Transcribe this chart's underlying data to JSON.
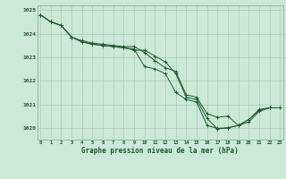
{
  "xlabel": "Graphe pression niveau de la mer (hPa)",
  "ylim": [
    1019.5,
    1025.2
  ],
  "xlim": [
    -0.3,
    23.3
  ],
  "yticks": [
    1020,
    1021,
    1022,
    1023,
    1024,
    1025
  ],
  "xticks": [
    0,
    1,
    2,
    3,
    4,
    5,
    6,
    7,
    8,
    9,
    10,
    11,
    12,
    13,
    14,
    15,
    16,
    17,
    18,
    19,
    20,
    21,
    22,
    23
  ],
  "bg_color": "#cce8d8",
  "line_color": "#1a5c28",
  "grid_color": "#aacbb8",
  "line1": [
    1024.8,
    1024.5,
    1024.35,
    1023.85,
    1023.65,
    1023.55,
    1023.5,
    1023.45,
    1023.4,
    1023.3,
    1023.3,
    1023.05,
    1022.8,
    1022.3,
    1021.3,
    1021.2,
    1020.4,
    1019.95,
    1020.0,
    1020.1,
    1020.25,
    1020.7,
    1020.85,
    1020.85
  ],
  "line2": [
    1024.8,
    1024.5,
    1024.35,
    1023.85,
    1023.65,
    1023.55,
    1023.5,
    1023.45,
    1023.4,
    1023.35,
    1022.6,
    1022.5,
    1022.3,
    1021.5,
    1021.2,
    1021.1,
    1020.1,
    1019.98,
    1020.0,
    1020.1,
    1020.35,
    1020.78,
    1020.85,
    1020.85
  ],
  "line3": [
    1024.8,
    1024.5,
    1024.35,
    1023.85,
    1023.7,
    1023.6,
    1023.55,
    1023.5,
    1023.45,
    1023.45,
    1023.2,
    1022.85,
    1022.55,
    1022.4,
    1021.4,
    1021.3,
    1020.6,
    1020.45,
    1020.5,
    1020.1,
    1020.35,
    1020.75,
    1020.85,
    1020.85
  ]
}
